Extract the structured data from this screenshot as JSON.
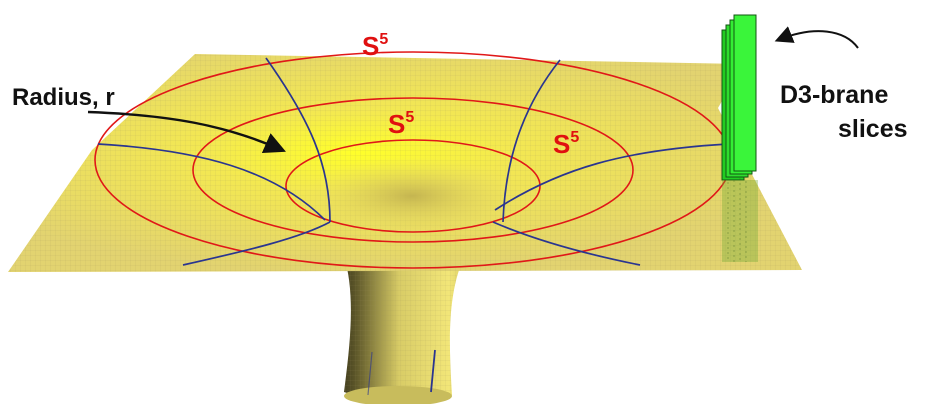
{
  "labels": {
    "radius": "Radius, r",
    "sphere": {
      "base": "S",
      "exp": "5"
    },
    "brane_line1": "D3-brane",
    "brane_line2": "slices"
  },
  "colors": {
    "surface": "#e8d86a",
    "surface_glow": "#ffff2a",
    "circle": "#e01818",
    "meridian": "#2a3590",
    "brane": "#33ee33",
    "sphere_text": "#e01010",
    "text": "#111111"
  }
}
